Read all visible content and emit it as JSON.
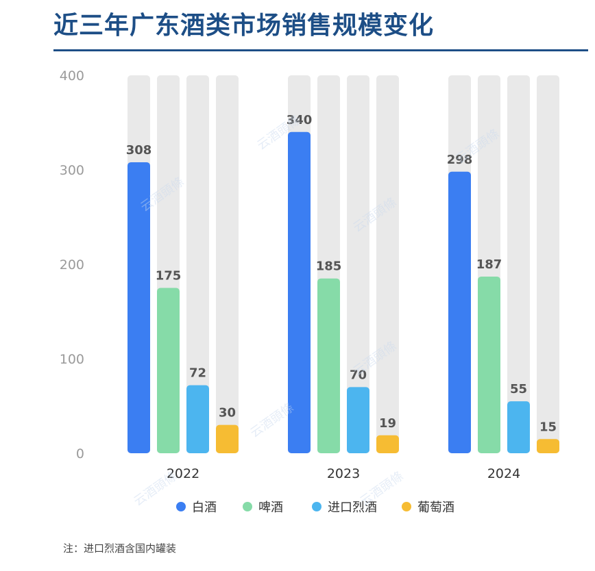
{
  "title": "近三年广东酒类市场销售规模变化",
  "note": "注：进口烈酒含国内罐装",
  "watermark": "云酒頭條",
  "colors": {
    "title": "#1d4e86",
    "track": "#e9e9e9",
    "axis_text": "#9a9a9a",
    "label_text": "#555555"
  },
  "chart_data": {
    "type": "bar",
    "categories": [
      "2022",
      "2023",
      "2024"
    ],
    "series": [
      {
        "name": "白酒",
        "color": "#3b7ef2",
        "values": [
          308,
          340,
          298
        ]
      },
      {
        "name": "啤酒",
        "color": "#86dba8",
        "values": [
          175,
          185,
          187
        ]
      },
      {
        "name": "进口烈酒",
        "color": "#4cb5ef",
        "values": [
          72,
          70,
          55
        ]
      },
      {
        "name": "葡萄酒",
        "color": "#f6bc33",
        "values": [
          30,
          19,
          15
        ]
      }
    ],
    "ylim": [
      0,
      400
    ],
    "yticks": [
      0,
      100,
      200,
      300,
      400
    ],
    "legend_position": "bottom",
    "grid": false
  }
}
